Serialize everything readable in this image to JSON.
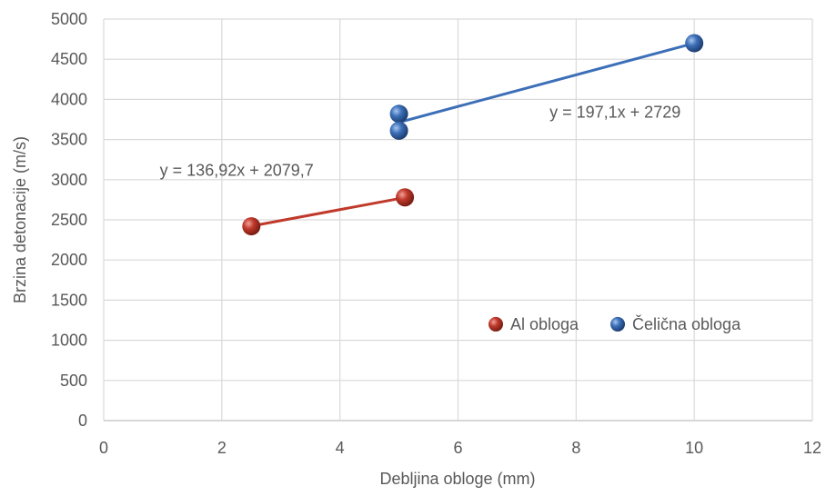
{
  "chart_data": {
    "type": "scatter",
    "xlabel": "Debljina obloge  (mm)",
    "ylabel": "Brzina detonacije (m/s)",
    "xlim": [
      0,
      12
    ],
    "ylim": [
      0,
      5000
    ],
    "x_ticks": [
      "0",
      "2",
      "4",
      "6",
      "8",
      "10",
      "12"
    ],
    "y_ticks": [
      "0",
      "500",
      "1000",
      "1500",
      "2000",
      "2500",
      "3000",
      "3500",
      "4000",
      "4500",
      "5000"
    ],
    "grid": true,
    "legend_position": "right",
    "series": [
      {
        "name": "Al obloga",
        "color": "#c0392b",
        "points": [
          {
            "x": 2.5,
            "y": 2420
          },
          {
            "x": 5.1,
            "y": 2780
          }
        ],
        "trendline": {
          "equation": "y = 136,92x + 2079,7",
          "slope": 136.92,
          "intercept": 2079.7,
          "x_range": [
            2.5,
            5.1
          ]
        }
      },
      {
        "name": "Čelična obloga",
        "color": "#3c6fb8",
        "points": [
          {
            "x": 5.0,
            "y": 3820
          },
          {
            "x": 5.0,
            "y": 3610
          },
          {
            "x": 10.0,
            "y": 4700
          }
        ],
        "trendline": {
          "equation": "y = 197,1x + 2729",
          "slope": 197.1,
          "intercept": 2729,
          "x_range": [
            5.0,
            10.0
          ]
        }
      }
    ]
  }
}
